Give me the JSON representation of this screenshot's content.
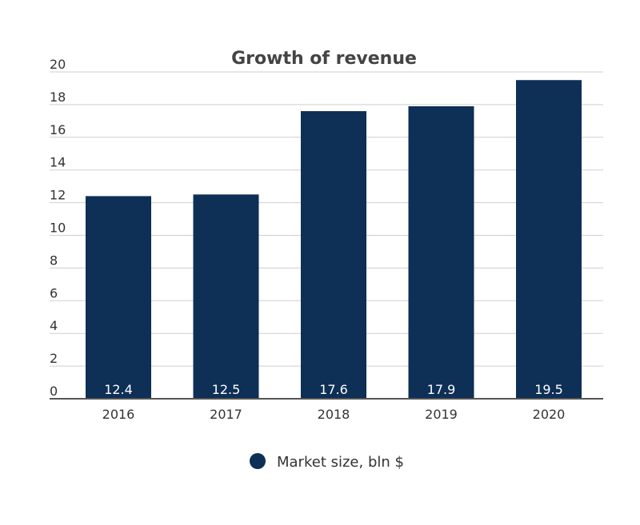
{
  "chart_data": {
    "type": "bar",
    "title": "Growth of revenue",
    "categories": [
      "2016",
      "2017",
      "2018",
      "2019",
      "2020"
    ],
    "series": [
      {
        "name": "Market size, bln $",
        "values": [
          12.4,
          12.5,
          17.6,
          17.9,
          19.5
        ],
        "data_labels": [
          "12.4",
          "12.5",
          "17.6",
          "17.9",
          "19.5"
        ],
        "color": "#0e2f56"
      }
    ],
    "y_ticks": [
      "0",
      "2",
      "4",
      "6",
      "8",
      "10",
      "12",
      "14",
      "16",
      "18",
      "20"
    ],
    "ylim": [
      0,
      20
    ],
    "grid": true,
    "legend_position": "bottom"
  }
}
